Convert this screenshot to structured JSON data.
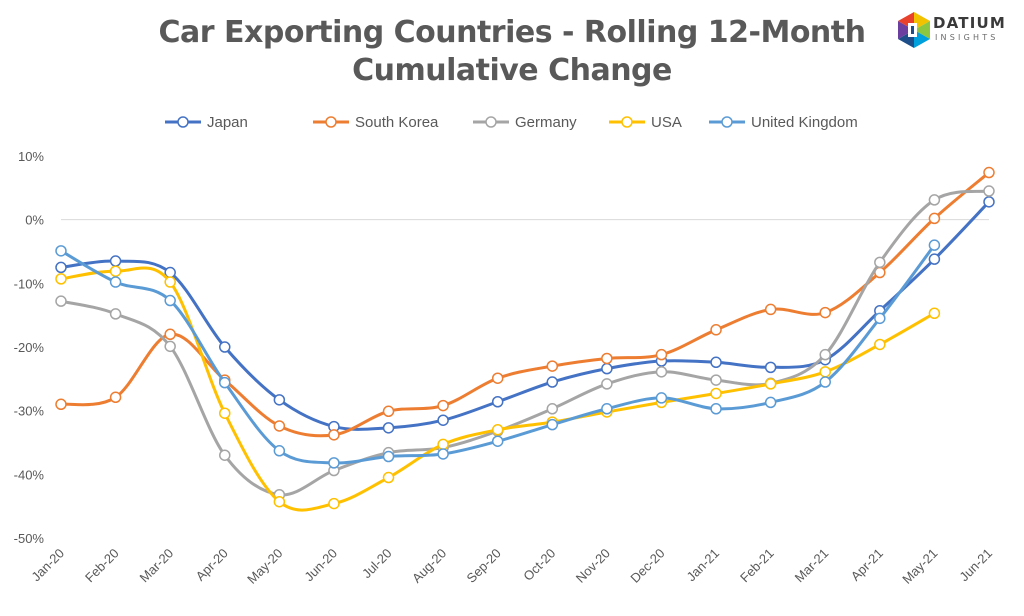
{
  "title_lines": [
    "Car Exporting Countries - Rolling 12-Month",
    "Cumulative Change"
  ],
  "logo": {
    "word": "DATIUM",
    "sub": "INSIGHTS"
  },
  "chart_data": {
    "type": "line",
    "title": "Car Exporting Countries - Rolling 12-Month Cumulative Change",
    "categories": [
      "Jan-20",
      "Feb-20",
      "Mar-20",
      "Apr-20",
      "May-20",
      "Jun-20",
      "Jul-20",
      "Aug-20",
      "Sep-20",
      "Oct-20",
      "Nov-20",
      "Dec-20",
      "Jan-21",
      "Feb-21",
      "Mar-21",
      "Apr-21",
      "May-21",
      "Jun-21"
    ],
    "ylim": [
      -50,
      10
    ],
    "yticks": [
      -50,
      -40,
      -30,
      -20,
      -10,
      0,
      10
    ],
    "ytick_labels": [
      "-50%",
      "-40%",
      "-30%",
      "-20%",
      "-10%",
      "0%",
      "10%"
    ],
    "grid": false,
    "zero_line": true,
    "legend_position": "top",
    "smooth": true,
    "series": [
      {
        "name": "Japan",
        "color": "#4472C4",
        "values": [
          -7.5,
          -6.5,
          -8.3,
          -20,
          -28.3,
          -32.5,
          -32.7,
          -31.5,
          -28.6,
          -25.5,
          -23.4,
          -22.2,
          -22.4,
          -23.2,
          -22,
          -14.3,
          -6.2,
          2.8
        ]
      },
      {
        "name": "South Korea",
        "color": "#ED7D31",
        "values": [
          -29,
          -27.9,
          -18,
          -25.2,
          -32.4,
          -33.8,
          -30.1,
          -29.2,
          -24.9,
          -23,
          -21.8,
          -21.2,
          -17.3,
          -14.1,
          -14.6,
          -8.3,
          0.2,
          7.4
        ]
      },
      {
        "name": "Germany",
        "color": "#A5A5A5",
        "values": [
          -12.8,
          -14.8,
          -19.9,
          -37,
          -43.2,
          -39.4,
          -36.6,
          -35.8,
          -33.2,
          -29.7,
          -25.8,
          -23.9,
          -25.2,
          -25.7,
          -21.2,
          -6.7,
          3.1,
          4.5
        ]
      },
      {
        "name": "USA",
        "color": "#FFC000",
        "values": [
          -9.3,
          -8.1,
          -9.8,
          -30.4,
          -44.3,
          -44.6,
          -40.5,
          -35.3,
          -33,
          -31.8,
          -30.2,
          -28.7,
          -27.3,
          -25.8,
          -23.9,
          -19.6,
          -14.7,
          null
        ]
      },
      {
        "name": "United Kingdom",
        "color": "#5B9BD5",
        "values": [
          -4.9,
          -9.8,
          -12.7,
          -25.6,
          -36.3,
          -38.2,
          -37.2,
          -36.8,
          -34.8,
          -32.2,
          -29.7,
          -28,
          -29.7,
          -28.7,
          -25.5,
          -15.5,
          -4,
          null
        ]
      }
    ]
  }
}
